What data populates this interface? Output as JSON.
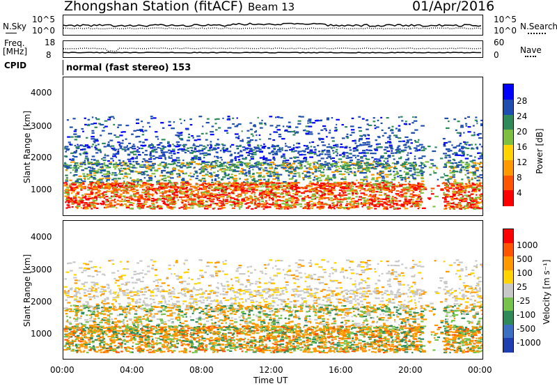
{
  "header": {
    "station": "Zhongshan Station (fitACF)",
    "beam": "Beam 13",
    "date": "01/Apr/2016"
  },
  "top_panels": {
    "nsky_label": "N.Sky",
    "nsky_ticks": [
      "10^5",
      "10^0"
    ],
    "nsearch_label": "N.Search",
    "nsearch_ticks": [
      "10^5",
      "10^0"
    ],
    "freq_label_1": "Freq.",
    "freq_label_2": "[MHz]",
    "freq_ticks": [
      "18",
      "8"
    ],
    "nave_label": "Nave",
    "nave_ticks": [
      "60",
      "0"
    ],
    "cpid_label": "CPID",
    "cpid_value": "normal (fast stereo) 153"
  },
  "chart_data": [
    {
      "type": "heatmap",
      "name": "power",
      "ylabel": "Slant Range [km]",
      "yticks": [
        "4000",
        "3000",
        "2000",
        "1000"
      ],
      "ylim": [
        180,
        4500
      ],
      "colorbar_label": "Power [dB]",
      "colorbar_ticks": [
        "28",
        "24",
        "20",
        "16",
        "12",
        "8",
        "4"
      ],
      "colors": [
        "#0000ff",
        "#1e4fb0",
        "#2f8a5a",
        "#7fbf3f",
        "#ffd400",
        "#ff9900",
        "#ff5500",
        "#ff0000"
      ]
    },
    {
      "type": "heatmap",
      "name": "velocity",
      "ylabel": "Slant Range [km]",
      "yticks": [
        "4000",
        "3000",
        "2000",
        "1000"
      ],
      "ylim": [
        180,
        4500
      ],
      "colorbar_label": "Velocity [m s⁻¹]",
      "colorbar_ticks": [
        "1000",
        "500",
        "100",
        "25",
        "-25",
        "-100",
        "-500",
        "-1000"
      ],
      "colors": [
        "#1f3fb0",
        "#3a6fc2",
        "#2f8a5a",
        "#77c24a",
        "#c8c8c8",
        "#ffd400",
        "#ff9900",
        "#ff5500",
        "#ff0000"
      ],
      "xlabel": "Time UT",
      "xticks": [
        "00:00",
        "04:00",
        "08:00",
        "12:00",
        "16:00",
        "20:00",
        "00:00"
      ]
    }
  ]
}
